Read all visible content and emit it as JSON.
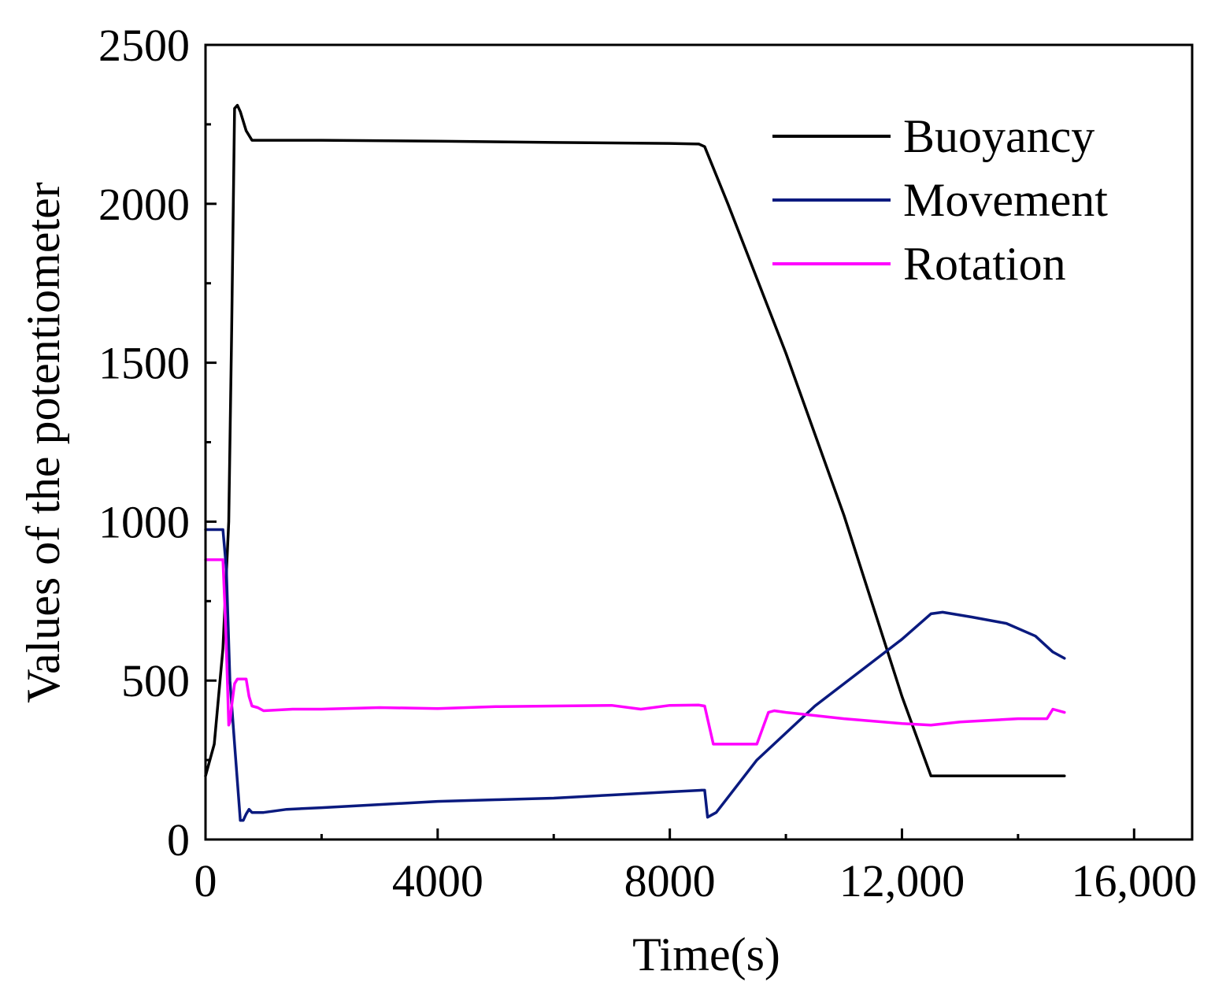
{
  "chart_data": {
    "type": "line",
    "title": "",
    "xlabel": "Time(s)",
    "ylabel": "Values of the potentiometer",
    "xlim": [
      0,
      17000
    ],
    "ylim": [
      0,
      2500
    ],
    "x_ticks": [
      0,
      4000,
      8000,
      12000,
      16000
    ],
    "x_tick_labels": [
      "0",
      "4000",
      "8000",
      "12,000",
      "16,000"
    ],
    "y_ticks": [
      0,
      500,
      1000,
      1500,
      2000,
      2500
    ],
    "y_tick_labels": [
      "0",
      "500",
      "1000",
      "1500",
      "2000",
      "2500"
    ],
    "grid": false,
    "legend_position": "top-right",
    "series": [
      {
        "name": "Buoyancy",
        "color": "#000000",
        "x": [
          0,
          150,
          300,
          400,
          450,
          500,
          550,
          600,
          700,
          800,
          2000,
          4000,
          6000,
          8000,
          8500,
          8600,
          9000,
          10000,
          11000,
          12000,
          12500,
          13000,
          14000,
          14800
        ],
        "y": [
          200,
          300,
          600,
          1000,
          1600,
          2300,
          2310,
          2290,
          2230,
          2200,
          2200,
          2197,
          2193,
          2190,
          2188,
          2180,
          2000,
          1530,
          1020,
          450,
          200,
          200,
          200,
          200
        ]
      },
      {
        "name": "Movement",
        "color": "#0a1a7f",
        "x": [
          0,
          300,
          360,
          420,
          500,
          600,
          650,
          700,
          750,
          800,
          1000,
          1400,
          2000,
          3000,
          4000,
          5000,
          6000,
          7000,
          8000,
          8550,
          8600,
          8650,
          8800,
          9500,
          10500,
          11500,
          12000,
          12500,
          12700,
          13200,
          13800,
          14300,
          14600,
          14800
        ],
        "y": [
          975,
          975,
          850,
          500,
          300,
          60,
          60,
          80,
          95,
          85,
          85,
          95,
          100,
          110,
          120,
          125,
          130,
          140,
          150,
          155,
          155,
          70,
          85,
          250,
          420,
          560,
          630,
          710,
          715,
          700,
          680,
          640,
          590,
          570
        ]
      },
      {
        "name": "Rotation",
        "color": "#ff00ff",
        "x": [
          0,
          300,
          330,
          360,
          400,
          420,
          450,
          500,
          550,
          600,
          700,
          750,
          800,
          900,
          1000,
          1500,
          2000,
          3000,
          4000,
          5000,
          6000,
          7000,
          7500,
          8000,
          8500,
          8600,
          8750,
          9000,
          9500,
          9600,
          9700,
          9800,
          10000,
          11000,
          12000,
          12500,
          13000,
          14000,
          14500,
          14600,
          14800
        ],
        "y": [
          880,
          880,
          750,
          600,
          360,
          370,
          420,
          490,
          505,
          505,
          505,
          450,
          420,
          415,
          405,
          410,
          410,
          415,
          412,
          418,
          420,
          422,
          410,
          422,
          423,
          420,
          300,
          300,
          300,
          350,
          400,
          405,
          400,
          380,
          365,
          360,
          370,
          380,
          380,
          410,
          400
        ]
      }
    ]
  }
}
